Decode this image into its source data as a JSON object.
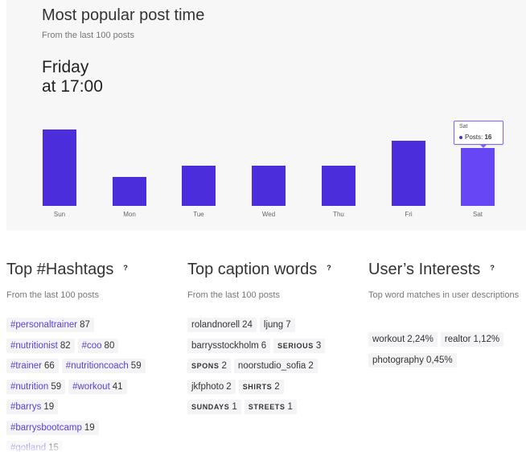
{
  "post_time": {
    "title": "Most popular post time",
    "subtitle": "From the last 100 posts",
    "best_day": "Friday",
    "best_time": "at 17:00",
    "accent_color": "#4b2ddb",
    "tooltip": {
      "day": "Sat",
      "label": "Posts:",
      "value": "16"
    }
  },
  "chart_data": {
    "type": "bar",
    "categories": [
      "Sun",
      "Mon",
      "Tue",
      "Wed",
      "Thu",
      "Fri",
      "Sat"
    ],
    "values": [
      21,
      8,
      11,
      11,
      11,
      18,
      16
    ],
    "title": "",
    "xlabel": "",
    "ylabel": "",
    "ylim": [
      0,
      21
    ],
    "grid": false,
    "active_category": "Sat"
  },
  "hashtags": {
    "title": "Top #Hashtags",
    "help": "?",
    "subtitle": "From the last 100 posts",
    "rows": [
      [
        {
          "tag": "#personaltrainer",
          "count": "87"
        }
      ],
      [
        {
          "tag": "#nutritionist",
          "count": "82"
        },
        {
          "tag": "#coo",
          "count": "80"
        }
      ],
      [
        {
          "tag": "#trainer",
          "count": "66"
        },
        {
          "tag": "#nutritioncoach",
          "count": "59"
        }
      ],
      [
        {
          "tag": "#nutrition",
          "count": "59"
        },
        {
          "tag": "#workout",
          "count": "41"
        }
      ],
      [
        {
          "tag": "#barrys",
          "count": "19"
        }
      ],
      [
        {
          "tag": "#barrysbootcamp",
          "count": "19"
        }
      ],
      [
        {
          "tag": "#gotland",
          "count": "15"
        }
      ]
    ]
  },
  "caption_words": {
    "title": "Top caption words",
    "help": "?",
    "subtitle": "From the last 100 posts",
    "rows": [
      [
        {
          "word": "rolandnorell",
          "count": "24",
          "caps": false
        },
        {
          "word": "ljung",
          "count": "7",
          "caps": false
        }
      ],
      [
        {
          "word": "barrysstockholm",
          "count": "6",
          "caps": false
        },
        {
          "word": "SERIOUS",
          "count": "3",
          "caps": true
        }
      ],
      [
        {
          "word": "SPONS",
          "count": "2",
          "caps": true
        },
        {
          "word": "noorstudio_sofia",
          "count": "2",
          "caps": false
        }
      ],
      [
        {
          "word": "jkfphoto",
          "count": "2",
          "caps": false
        },
        {
          "word": "SHIRTS",
          "count": "2",
          "caps": true
        }
      ],
      [
        {
          "word": "SUNDAYS",
          "count": "1",
          "caps": true
        },
        {
          "word": "STREETS",
          "count": "1",
          "caps": true
        }
      ]
    ]
  },
  "interests": {
    "title": "User’s Interests",
    "help": "?",
    "subtitle": "Top word matches in user descriptions",
    "rows": [
      [
        {
          "word": "workout",
          "pct": "2,24%"
        },
        {
          "word": "realtor",
          "pct": "1,12%"
        }
      ],
      [
        {
          "word": "photography",
          "pct": "0,45%"
        }
      ]
    ]
  }
}
